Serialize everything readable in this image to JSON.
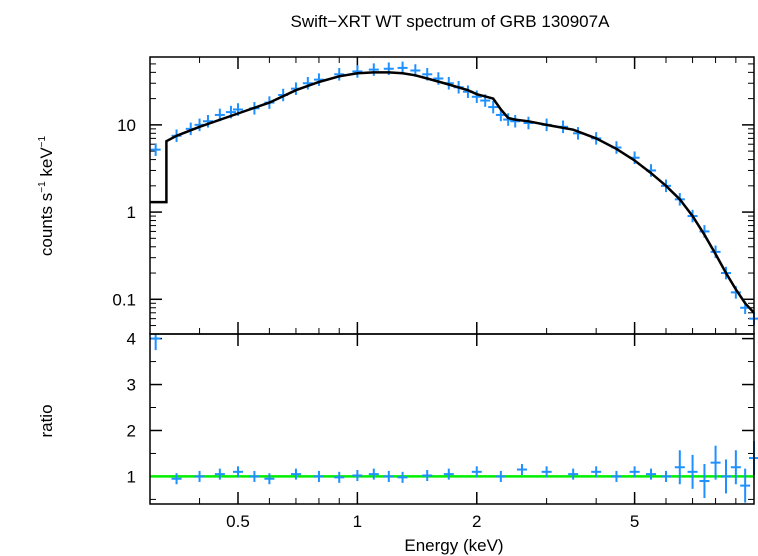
{
  "chart_data": [
    {
      "type": "scatter",
      "panel": "spectrum",
      "title": "Swift−XRT WT spectrum of GRB 130907A",
      "xlabel": "Energy (keV)",
      "ylabel_main": "counts s",
      "ylabel_sup1": "−1",
      "ylabel_mid": " keV",
      "ylabel_sup2": "−1",
      "xscale": "log",
      "yscale": "log",
      "xlim": [
        0.3,
        10
      ],
      "ylim": [
        0.04,
        60
      ],
      "x_ticks": [
        0.5,
        1,
        2,
        5
      ],
      "x_tick_labels": [
        "0.5",
        "1",
        "2",
        "5"
      ],
      "y_ticks": [
        0.1,
        1,
        10
      ],
      "y_tick_labels": [
        "0.1",
        "1",
        "10"
      ],
      "colors": {
        "data": "#1e90ff",
        "model": "#000000"
      },
      "series": [
        {
          "kind": "data",
          "x": [
            0.31,
            0.35,
            0.38,
            0.4,
            0.42,
            0.45,
            0.48,
            0.5,
            0.55,
            0.6,
            0.65,
            0.7,
            0.75,
            0.8,
            0.9,
            1.0,
            1.1,
            1.2,
            1.3,
            1.4,
            1.5,
            1.6,
            1.7,
            1.8,
            1.9,
            2.0,
            2.1,
            2.2,
            2.3,
            2.4,
            2.5,
            2.7,
            3.0,
            3.3,
            3.6,
            4.0,
            4.5,
            5.0,
            5.5,
            6.0,
            6.5,
            7.0,
            7.5,
            8.0,
            8.5,
            9.0,
            9.5,
            10.0
          ],
          "y": [
            5.2,
            7.5,
            9.0,
            10.0,
            11.0,
            13.0,
            14.0,
            15.0,
            15.5,
            18.0,
            22.0,
            26.0,
            30.0,
            33.0,
            38.0,
            41.0,
            43.0,
            44.0,
            45.0,
            42.0,
            38.0,
            34.0,
            30.0,
            27.0,
            24.0,
            21.0,
            19.0,
            16.0,
            13.0,
            11.5,
            11.0,
            10.5,
            10.0,
            9.5,
            8.0,
            7.0,
            5.5,
            4.2,
            3.0,
            2.0,
            1.4,
            0.9,
            0.6,
            0.35,
            0.2,
            0.12,
            0.08,
            0.06
          ]
        },
        {
          "kind": "model",
          "x": [
            0.3,
            0.33,
            0.33,
            0.35,
            0.4,
            0.5,
            0.6,
            0.7,
            0.8,
            0.9,
            1.0,
            1.1,
            1.2,
            1.3,
            1.4,
            1.5,
            1.7,
            1.9,
            2.0,
            2.2,
            2.3,
            2.4,
            2.5,
            2.7,
            3.0,
            3.5,
            4.0,
            4.5,
            5.0,
            5.5,
            6.0,
            6.5,
            7.0,
            7.5,
            8.0,
            8.5,
            9.0,
            9.5,
            10.0
          ],
          "y": [
            1.3,
            1.3,
            6.5,
            7.5,
            9.5,
            13.5,
            18.0,
            25.0,
            31.0,
            36.0,
            39.0,
            40.0,
            40.0,
            39.0,
            37.0,
            34.0,
            29.0,
            25.0,
            22.5,
            20.0,
            15.0,
            12.0,
            11.5,
            11.0,
            10.0,
            8.8,
            7.0,
            5.3,
            3.9,
            2.8,
            2.0,
            1.4,
            0.9,
            0.55,
            0.33,
            0.2,
            0.13,
            0.09,
            0.07
          ]
        }
      ]
    },
    {
      "type": "scatter",
      "panel": "ratio",
      "ylabel": "ratio",
      "xscale": "log",
      "xlim": [
        0.3,
        10
      ],
      "ylim": [
        0.4,
        4.1
      ],
      "y_ticks": [
        1,
        2,
        3,
        4
      ],
      "y_tick_labels": [
        "1",
        "2",
        "3",
        "4"
      ],
      "reference_line": 1,
      "colors": {
        "data": "#1e90ff",
        "reference": "#00ee00"
      },
      "series": [
        {
          "kind": "data",
          "x": [
            0.31,
            0.35,
            0.4,
            0.45,
            0.5,
            0.55,
            0.6,
            0.7,
            0.8,
            0.9,
            1.0,
            1.1,
            1.2,
            1.3,
            1.5,
            1.7,
            2.0,
            2.3,
            2.6,
            3.0,
            3.5,
            4.0,
            4.5,
            5.0,
            5.5,
            6.0,
            6.5,
            7.0,
            7.5,
            8.0,
            8.5,
            9.0,
            9.5,
            10.0
          ],
          "y": [
            4.0,
            0.95,
            1.0,
            1.05,
            1.1,
            1.0,
            0.95,
            1.05,
            1.0,
            0.98,
            1.02,
            1.05,
            1.0,
            0.98,
            1.02,
            1.05,
            1.1,
            1.0,
            1.15,
            1.1,
            1.05,
            1.1,
            1.0,
            1.1,
            1.05,
            1.0,
            1.2,
            1.1,
            0.9,
            1.3,
            1.0,
            1.2,
            0.8,
            1.4
          ]
        }
      ]
    }
  ]
}
